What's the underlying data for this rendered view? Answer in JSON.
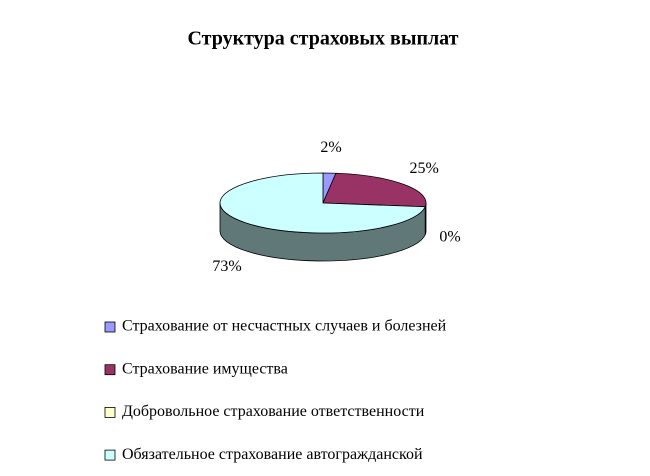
{
  "chart_data": {
    "type": "pie",
    "title": "Структура страховых выплат",
    "categories": [
      "Страхование от несчастных случаев и болезней",
      "Страхование имущества",
      "Добровольное страхование ответственности",
      "Обязательное страхование автогражданской"
    ],
    "values": [
      2,
      25,
      0,
      73
    ],
    "value_labels": [
      "2%",
      "25%",
      "0%",
      "73%"
    ],
    "colors": [
      "#9999ff",
      "#993366",
      "#ffffcc",
      "#ccffff"
    ],
    "legend": "bottom"
  }
}
